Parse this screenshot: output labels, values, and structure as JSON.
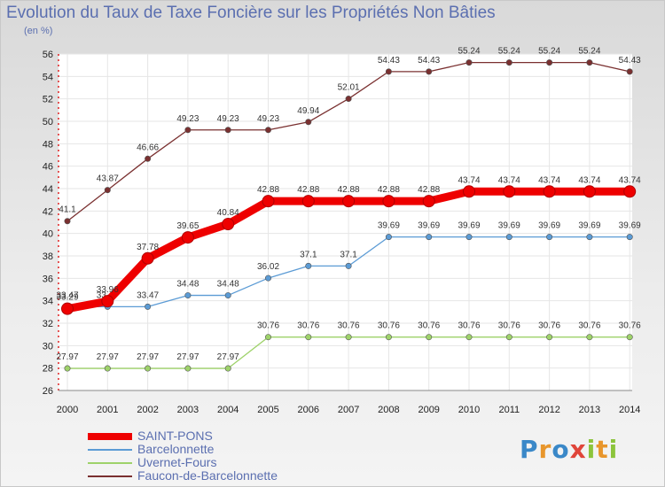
{
  "logo_text": "Proxiti",
  "chart_data": {
    "type": "line",
    "title": "Evolution du Taux de Taxe Foncière sur les Propriétés Non Bâties",
    "ylabel": "(en %)",
    "xlabel": "",
    "x": [
      "2000",
      "2001",
      "2002",
      "2003",
      "2004",
      "2005",
      "2006",
      "2007",
      "2008",
      "2009",
      "2010",
      "2011",
      "2012",
      "2013",
      "2014"
    ],
    "ylim": [
      26,
      56
    ],
    "yticks": [
      26,
      28,
      30,
      32,
      34,
      36,
      38,
      40,
      42,
      44,
      46,
      48,
      50,
      52,
      54,
      56
    ],
    "grid": true,
    "legend": "bottom-left",
    "series": [
      {
        "name": "SAINT-PONS",
        "color": "#ee0000",
        "values": [
          33.29,
          33.96,
          37.78,
          39.65,
          40.84,
          42.88,
          42.88,
          42.88,
          42.88,
          42.88,
          43.74,
          43.74,
          43.74,
          43.74,
          43.74
        ]
      },
      {
        "name": "Barcelonnette",
        "color": "#5b9bd5",
        "values": [
          33.47,
          33.47,
          33.47,
          34.48,
          34.48,
          36.02,
          37.1,
          37.1,
          39.69,
          39.69,
          39.69,
          39.69,
          39.69,
          39.69,
          39.69
        ]
      },
      {
        "name": "Uvernet-Fours",
        "color": "#9ed26a",
        "values": [
          27.97,
          27.97,
          27.97,
          27.97,
          27.97,
          30.76,
          30.76,
          30.76,
          30.76,
          30.76,
          30.76,
          30.76,
          30.76,
          30.76,
          30.76
        ]
      },
      {
        "name": "Faucon-de-Barcelonnette",
        "color": "#7a3030",
        "values": [
          41.1,
          43.87,
          46.66,
          49.23,
          49.23,
          49.23,
          49.94,
          52.01,
          54.43,
          54.43,
          55.24,
          55.24,
          55.24,
          55.24,
          54.43
        ]
      }
    ]
  }
}
